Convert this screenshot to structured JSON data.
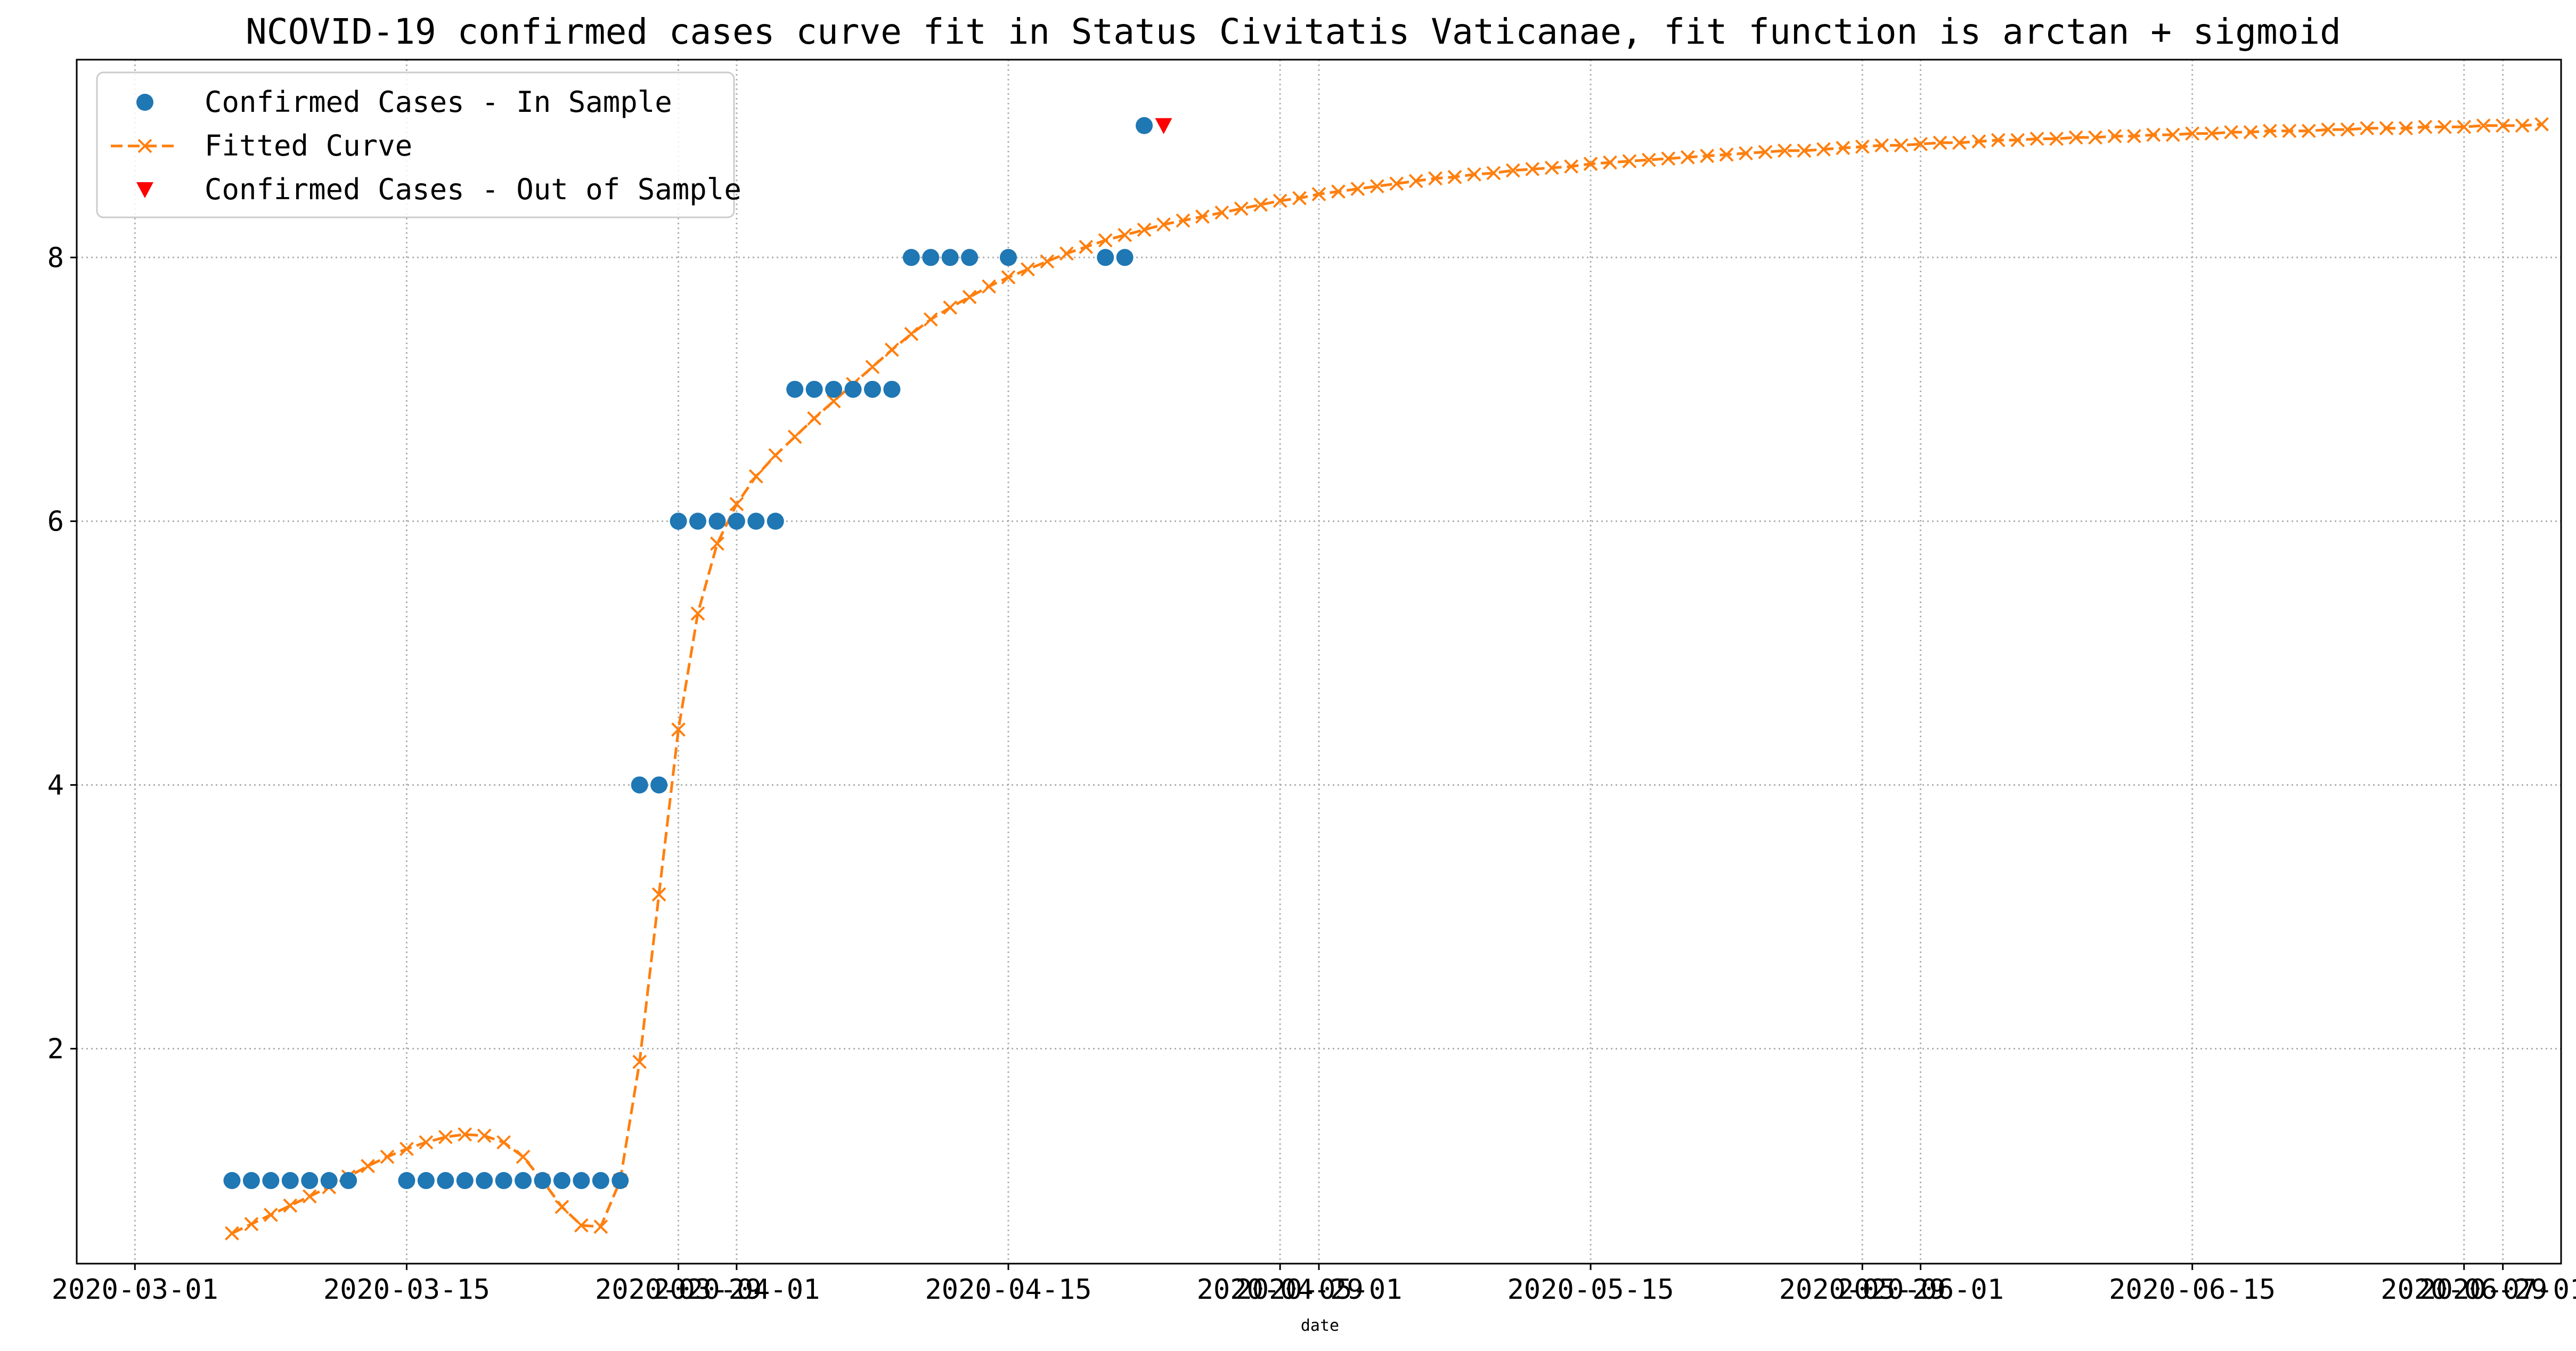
{
  "chart_data": {
    "type": "line",
    "title": "NCOVID-19 confirmed cases curve fit in Status Civitatis Vaticanae, fit function is arctan + sigmoid",
    "xlabel": "date",
    "ylabel": "",
    "x_axis_type": "date",
    "xlim": [
      "2020-02-27",
      "2020-07-04"
    ],
    "ylim": [
      0.37,
      9.5
    ],
    "grid": true,
    "legend_position": "top-left",
    "x_tick_labels": [
      "2020-03-01",
      "2020-03-15",
      "2020-03-29",
      "2020-04-01",
      "2020-04-15",
      "2020-04-29",
      "2020-05-01",
      "2020-05-15",
      "2020-05-29",
      "2020-06-01",
      "2020-06-15",
      "2020-06-29",
      "2020-07-01"
    ],
    "y_ticks": [
      2,
      4,
      6,
      8
    ],
    "series": [
      {
        "name": "Confirmed Cases - In Sample",
        "marker": "circle",
        "color": "#1f77b4",
        "points": [
          [
            "2020-03-06",
            1
          ],
          [
            "2020-03-07",
            1
          ],
          [
            "2020-03-08",
            1
          ],
          [
            "2020-03-09",
            1
          ],
          [
            "2020-03-10",
            1
          ],
          [
            "2020-03-11",
            1
          ],
          [
            "2020-03-12",
            1
          ],
          [
            "2020-03-15",
            1
          ],
          [
            "2020-03-16",
            1
          ],
          [
            "2020-03-17",
            1
          ],
          [
            "2020-03-18",
            1
          ],
          [
            "2020-03-19",
            1
          ],
          [
            "2020-03-20",
            1
          ],
          [
            "2020-03-21",
            1
          ],
          [
            "2020-03-22",
            1
          ],
          [
            "2020-03-23",
            1
          ],
          [
            "2020-03-24",
            1
          ],
          [
            "2020-03-25",
            1
          ],
          [
            "2020-03-26",
            1
          ],
          [
            "2020-03-27",
            4
          ],
          [
            "2020-03-28",
            4
          ],
          [
            "2020-03-29",
            6
          ],
          [
            "2020-03-30",
            6
          ],
          [
            "2020-03-31",
            6
          ],
          [
            "2020-04-01",
            6
          ],
          [
            "2020-04-02",
            6
          ],
          [
            "2020-04-03",
            6
          ],
          [
            "2020-04-04",
            7
          ],
          [
            "2020-04-05",
            7
          ],
          [
            "2020-04-06",
            7
          ],
          [
            "2020-04-07",
            7
          ],
          [
            "2020-04-08",
            7
          ],
          [
            "2020-04-09",
            7
          ],
          [
            "2020-04-10",
            8
          ],
          [
            "2020-04-11",
            8
          ],
          [
            "2020-04-12",
            8
          ],
          [
            "2020-04-13",
            8
          ],
          [
            "2020-04-15",
            8
          ],
          [
            "2020-04-20",
            8
          ],
          [
            "2020-04-21",
            8
          ],
          [
            "2020-04-22",
            9
          ]
        ]
      },
      {
        "name": "Fitted Curve",
        "marker": "x",
        "line_style": "dashed",
        "color": "#ff7f0e",
        "start_date": "2020-03-06",
        "end_date": "2020-07-03",
        "values": [
          0.6,
          0.67,
          0.74,
          0.81,
          0.88,
          0.95,
          1.03,
          1.11,
          1.18,
          1.24,
          1.29,
          1.33,
          1.35,
          1.34,
          1.29,
          1.18,
          1.0,
          0.8,
          0.66,
          0.65,
          1.0,
          1.9,
          3.17,
          4.42,
          5.3,
          5.83,
          6.13,
          6.34,
          6.5,
          6.64,
          6.78,
          6.91,
          7.04,
          7.17,
          7.3,
          7.42,
          7.53,
          7.62,
          7.7,
          7.78,
          7.85,
          7.91,
          7.97,
          8.03,
          8.08,
          8.13,
          8.17,
          8.21,
          8.25,
          8.28,
          8.31,
          8.34,
          8.37,
          8.4,
          8.43,
          8.45,
          8.48,
          8.5,
          8.52,
          8.54,
          8.56,
          8.58,
          8.6,
          8.61,
          8.63,
          8.64,
          8.66,
          8.67,
          8.68,
          8.69,
          8.71,
          8.72,
          8.73,
          8.74,
          8.75,
          8.76,
          8.77,
          8.78,
          8.79,
          8.8,
          8.81,
          8.81,
          8.82,
          8.83,
          8.84,
          8.85,
          8.85,
          8.86,
          8.87,
          8.87,
          8.88,
          8.89,
          8.89,
          8.9,
          8.9,
          8.91,
          8.91,
          8.92,
          8.92,
          8.93,
          8.93,
          8.94,
          8.94,
          8.95,
          8.95,
          8.96,
          8.96,
          8.96,
          8.97,
          8.97,
          8.98,
          8.98,
          8.98,
          8.99,
          8.99,
          8.99,
          9.0,
          9.0,
          9.0,
          9.01
        ]
      },
      {
        "name": "Confirmed Cases - Out of Sample",
        "marker": "triangle-down",
        "color": "#ff0000",
        "points": [
          [
            "2020-04-23",
            9
          ]
        ]
      }
    ]
  }
}
